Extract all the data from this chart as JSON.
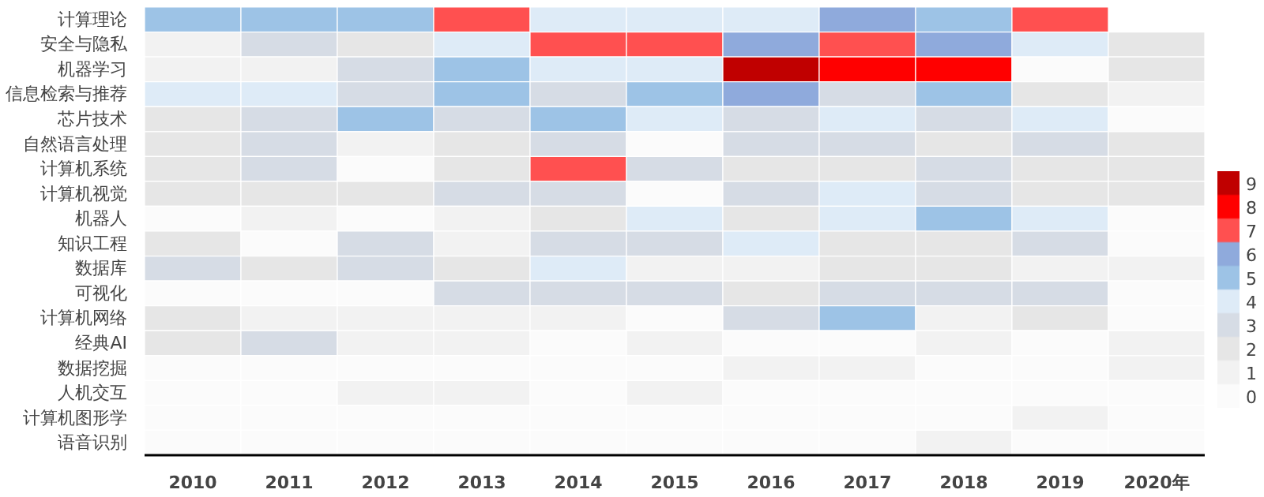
{
  "chart_data": {
    "type": "heatmap",
    "categories": [
      "2010",
      "2011",
      "2012",
      "2013",
      "2014",
      "2015",
      "2016",
      "2017",
      "2018",
      "2019",
      "2020年"
    ],
    "y_categories": [
      "计算理论",
      "安全与隐私",
      "机器学习",
      "信息检索与推荐",
      "芯片技术",
      "自然语言处理",
      "计算机系统",
      "计算机视觉",
      "机器人",
      "知识工程",
      "数据库",
      "可视化",
      "计算机网络",
      "经典AI",
      "数据挖掘",
      "人机交互",
      "计算机图形学",
      "语音识别"
    ],
    "cells": [
      [
        5,
        5,
        5,
        7,
        4,
        4,
        4,
        6,
        5,
        7,
        null
      ],
      [
        1,
        3,
        2,
        4,
        7,
        7,
        6,
        7,
        6,
        4,
        2
      ],
      [
        1,
        1,
        3,
        5,
        4,
        4,
        9,
        8,
        8,
        0,
        2
      ],
      [
        4,
        4,
        3,
        5,
        3,
        5,
        6,
        3,
        5,
        2,
        1
      ],
      [
        2,
        3,
        5,
        3,
        5,
        4,
        3,
        4,
        3,
        4,
        0
      ],
      [
        2,
        3,
        1,
        2,
        3,
        0,
        3,
        3,
        2,
        3,
        2
      ],
      [
        2,
        3,
        0,
        2,
        7,
        3,
        2,
        2,
        3,
        2,
        2
      ],
      [
        2,
        2,
        2,
        3,
        3,
        0,
        3,
        4,
        3,
        2,
        2
      ],
      [
        0,
        1,
        0,
        1,
        2,
        4,
        2,
        4,
        5,
        4,
        0
      ],
      [
        2,
        0,
        3,
        1,
        3,
        3,
        4,
        2,
        2,
        3,
        0
      ],
      [
        3,
        2,
        3,
        2,
        4,
        1,
        1,
        2,
        2,
        1,
        1
      ],
      [
        0,
        0,
        0,
        3,
        3,
        3,
        2,
        3,
        3,
        3,
        0
      ],
      [
        2,
        1,
        1,
        1,
        1,
        0,
        3,
        5,
        1,
        2,
        0
      ],
      [
        2,
        3,
        1,
        1,
        0,
        1,
        0,
        0,
        1,
        0,
        1
      ],
      [
        0,
        0,
        0,
        0,
        0,
        0,
        1,
        1,
        0,
        0,
        1
      ],
      [
        0,
        0,
        1,
        1,
        0,
        1,
        0,
        0,
        0,
        0,
        0
      ],
      [
        0,
        0,
        0,
        0,
        0,
        0,
        0,
        0,
        0,
        1,
        0
      ],
      [
        0,
        0,
        0,
        0,
        0,
        0,
        0,
        0,
        1,
        0,
        0
      ]
    ],
    "colors": [
      "#fbfbfb",
      "#f2f2f2",
      "#e6e6e6",
      "#d6dce5",
      "#deebf7",
      "#9dc3e6",
      "#8faadc",
      "#ff5050",
      "#ff0000",
      "#c00000"
    ],
    "clim": [
      -0.5,
      9.5
    ],
    "cticks": [
      0,
      1,
      2,
      3,
      4,
      5,
      6,
      7,
      8,
      9
    ],
    "grid": false
  }
}
